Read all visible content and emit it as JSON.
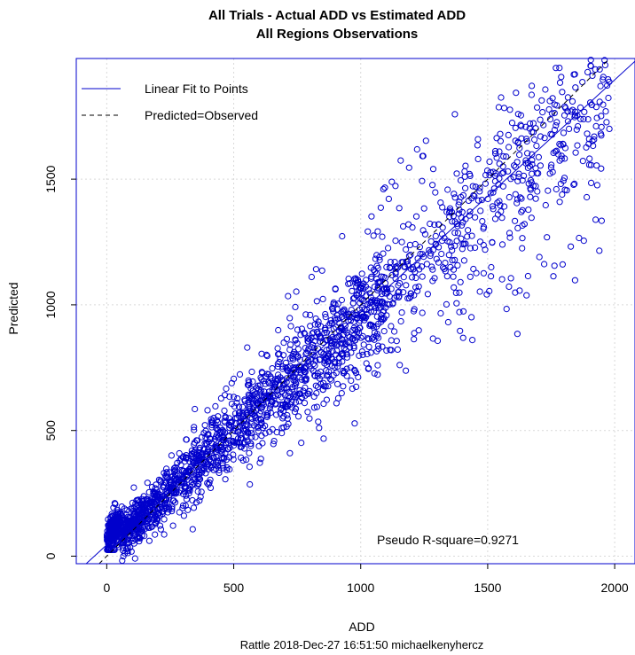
{
  "chart_data": {
    "type": "scatter",
    "title": "All Trials - Actual ADD vs Estimated ADD",
    "subtitle": "All Regions Observations",
    "xlabel": "ADD",
    "ylabel": "Predicted",
    "footer": "Rattle 2018-Dec-27 16:51:50 michaelkenyhercz",
    "xlim": [
      -120,
      2080
    ],
    "ylim": [
      -30,
      1980
    ],
    "x_ticks": [
      "0",
      "500",
      "1000",
      "1500",
      "2000"
    ],
    "y_ticks": [
      "0",
      "500",
      "1000",
      "1500"
    ],
    "x_tick_values": [
      0,
      500,
      1000,
      1500,
      2000
    ],
    "y_tick_values": [
      0,
      500,
      1000,
      1500
    ],
    "grid": true,
    "legend_position": "top-left",
    "legend": [
      {
        "label": "Linear Fit to Points",
        "style": "solid"
      },
      {
        "label": "Predicted=Observed",
        "style": "dashed"
      }
    ],
    "annotation": "Pseudo R-square=0.9271",
    "fit_line": {
      "intercept": 45,
      "slope": 0.925
    },
    "identity_line": {
      "intercept": 0,
      "slope": 1
    },
    "point_count": 2200,
    "colors": {
      "points": "#0000cc",
      "fit_line": "#0000cc",
      "identity_line": "#000000",
      "frame": "#0000cc",
      "grid": "#d9d9d9"
    }
  }
}
